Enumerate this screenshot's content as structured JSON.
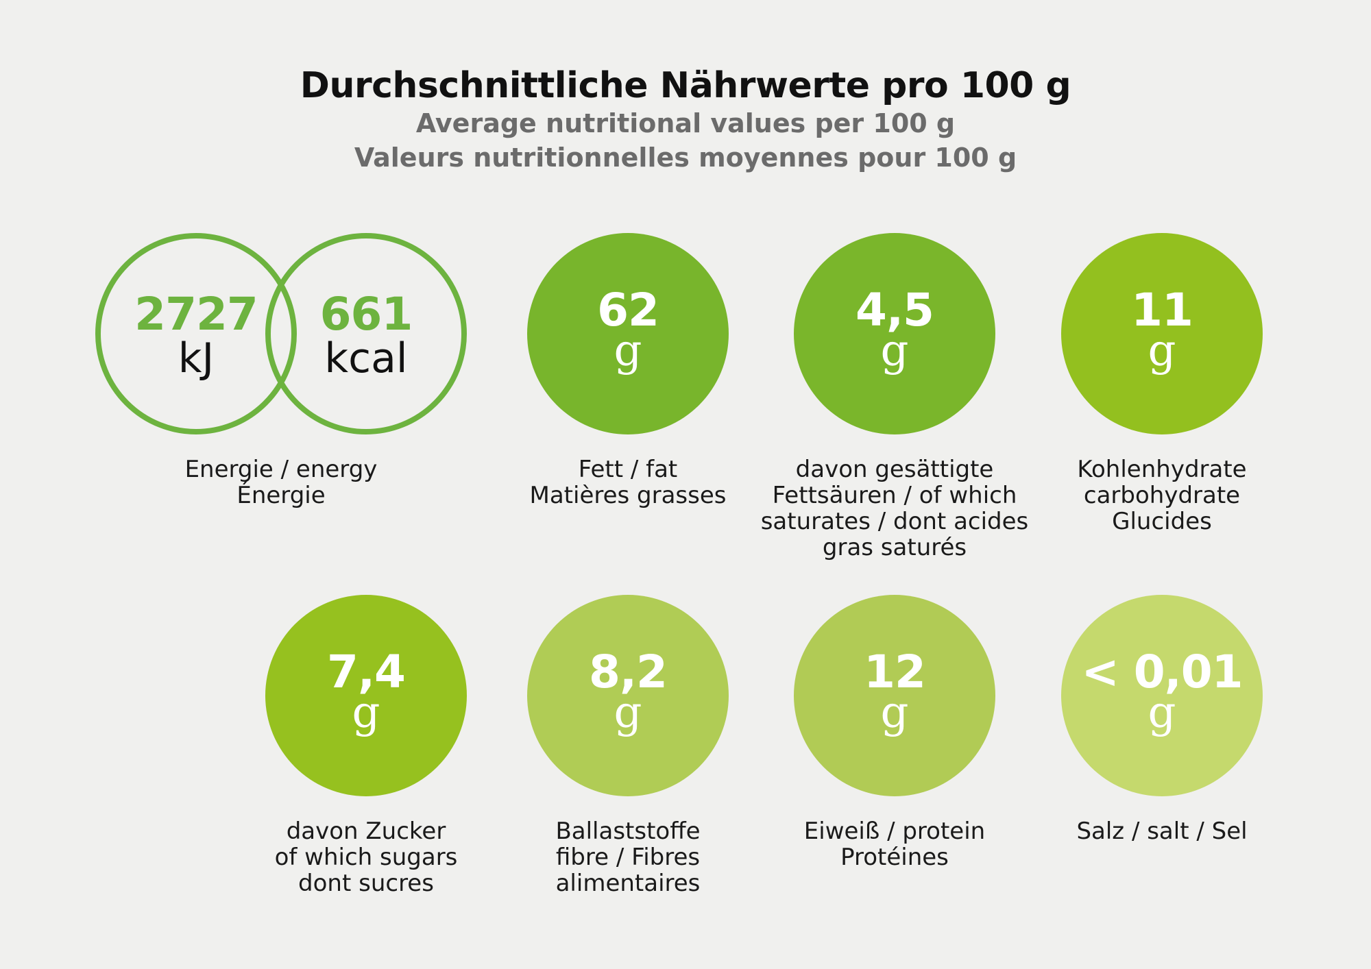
{
  "title": "Durchschnittliche Nährwerte pro 100 g",
  "subtitle_en": "Average nutritional values per 100 g",
  "subtitle_fr": "Valeurs nutritionnelles moyennes pour 100 g",
  "energy": {
    "kj_value": "2727",
    "kj_unit": "kJ",
    "kcal_value": "661",
    "kcal_unit": "kcal",
    "label": [
      "Energie / energy",
      "Énergie"
    ],
    "color": "#6db33f"
  },
  "nutrients": [
    {
      "value": "62",
      "unit": "g",
      "label": [
        "Fett / fat",
        "Matières grasses"
      ],
      "color": "#78b52c"
    },
    {
      "value": "4,5",
      "unit": "g",
      "label": [
        "davon gesättigte",
        "Fettsäuren / of which",
        "saturates / dont acides",
        "gras saturés"
      ],
      "color": "#7ab62b"
    },
    {
      "value": "11",
      "unit": "g",
      "label": [
        "Kohlenhydrate",
        "carbohydrate",
        "Glucides"
      ],
      "color": "#93c01f"
    },
    {
      "value": "7,4",
      "unit": "g",
      "label": [
        "davon Zucker",
        "of which sugars",
        "dont sucres"
      ],
      "color": "#96c11f"
    },
    {
      "value": "8,2",
      "unit": "g",
      "label": [
        "Ballaststoffe",
        "fibre / Fibres",
        "alimentaires"
      ],
      "color": "#b0cc55"
    },
    {
      "value": "12",
      "unit": "g",
      "label": [
        "Eiweiß / protein",
        "Protéines"
      ],
      "color": "#b1cb55"
    },
    {
      "value": "< 0,01",
      "unit": "g",
      "label": [
        "Salz / salt / Sel"
      ],
      "color": "#c5d96d"
    }
  ]
}
